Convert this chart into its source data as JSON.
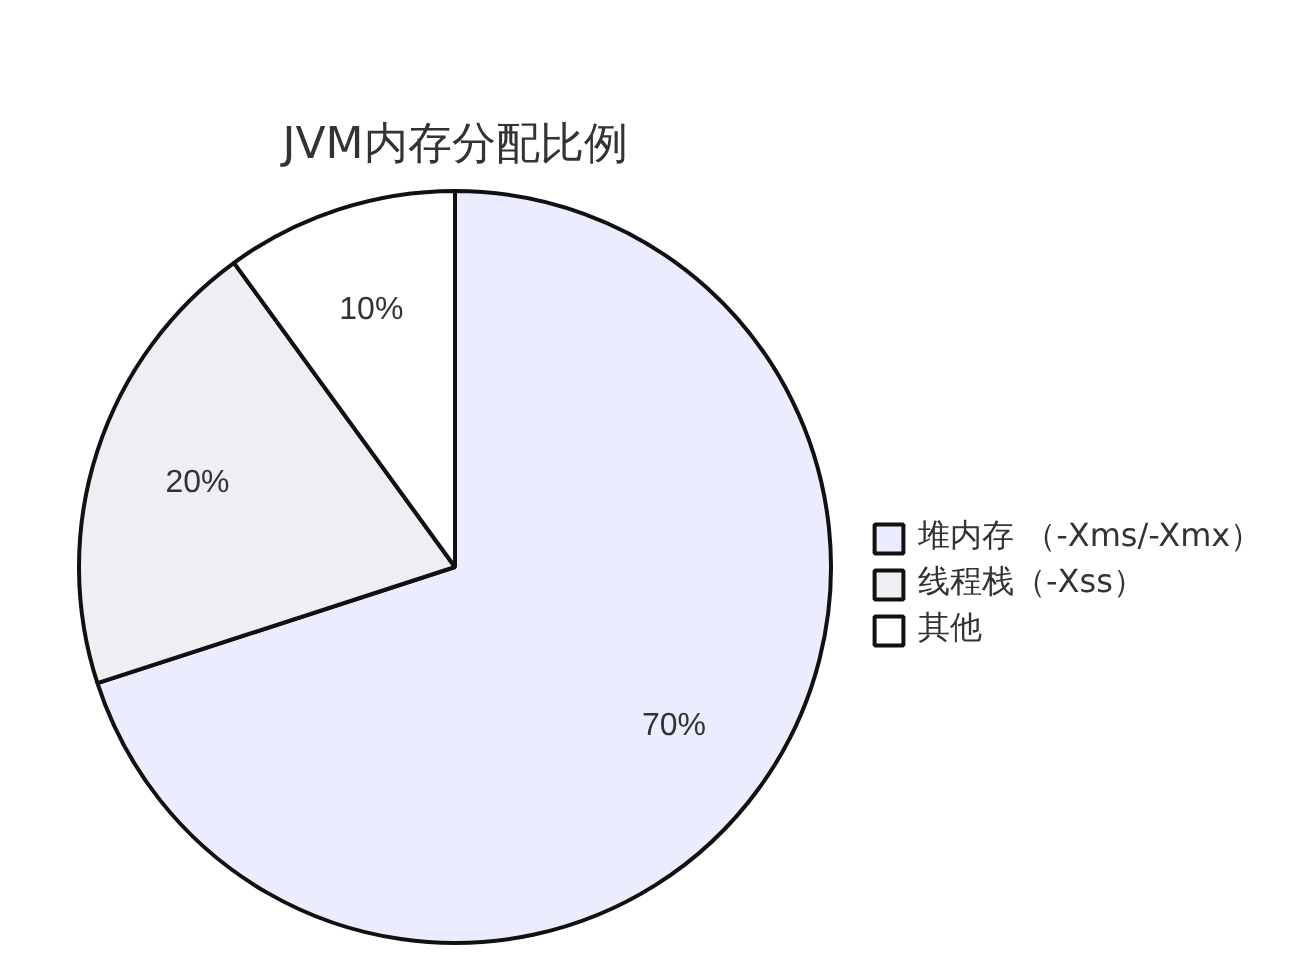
{
  "chart_data": {
    "type": "pie",
    "title": "JVM内存分配比例",
    "categories": [
      "堆内存 （-Xms/-Xmx）",
      "线程栈（-Xss）",
      "其他"
    ],
    "values": [
      70,
      20,
      10
    ],
    "colors": [
      "#ececff",
      "#efeef4",
      "#ffffff"
    ],
    "value_labels": [
      "70%",
      "20%",
      "10%"
    ],
    "legend": "right"
  }
}
